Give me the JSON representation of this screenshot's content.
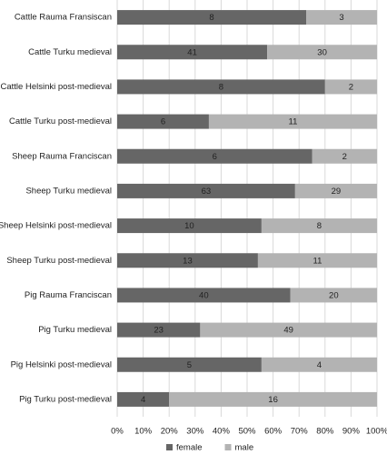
{
  "chart_data": {
    "type": "bar",
    "orientation": "horizontal",
    "stacking": "percent",
    "categories": [
      "Cattle Rauma Fransiscan",
      "Cattle Turku medieval",
      "Cattle Helsinki post-medieval",
      "Cattle Turku post-medieval",
      "Sheep Rauma Franciscan",
      "Sheep Turku medieval",
      "Sheep Helsinki post-medieval",
      "Sheep Turku post-medieval",
      "Pig Rauma Franciscan",
      "Pig Turku medieval",
      "Pig Helsinki post-medieval",
      "Pig Turku post-medieval"
    ],
    "series": [
      {
        "name": "female",
        "color": "#666666",
        "values": [
          8,
          41,
          8,
          6,
          6,
          63,
          10,
          13,
          40,
          23,
          5,
          4
        ]
      },
      {
        "name": "male",
        "color": "#b3b3b3",
        "values": [
          3,
          30,
          2,
          11,
          2,
          29,
          8,
          11,
          20,
          49,
          4,
          16
        ]
      }
    ],
    "xlim": [
      0,
      100
    ],
    "xticks": [
      {
        "value": 0,
        "label": "0%"
      },
      {
        "value": 10,
        "label": "10%"
      },
      {
        "value": 20,
        "label": "20%"
      },
      {
        "value": 30,
        "label": "30%"
      },
      {
        "value": 40,
        "label": "40%"
      },
      {
        "value": 50,
        "label": "50%"
      },
      {
        "value": 60,
        "label": "60%"
      },
      {
        "value": 70,
        "label": "70%"
      },
      {
        "value": 80,
        "label": "80%"
      },
      {
        "value": 90,
        "label": "90%"
      },
      {
        "value": 100,
        "label": "100%"
      }
    ],
    "grid": true,
    "legend": "bottom"
  }
}
